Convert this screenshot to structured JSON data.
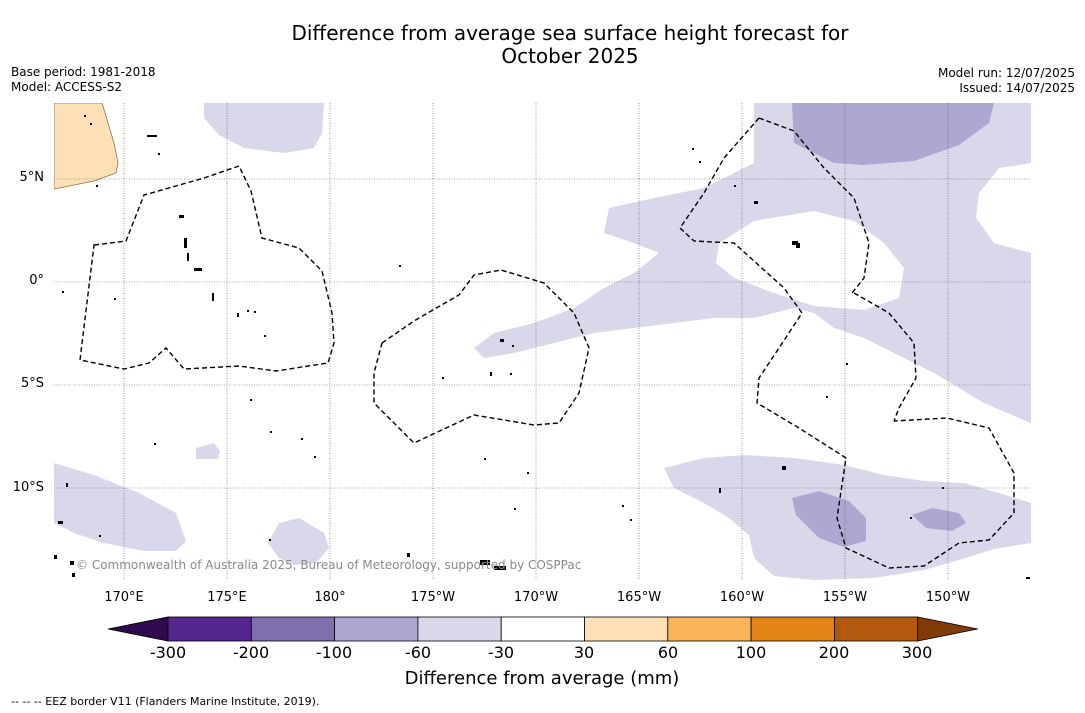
{
  "title_line1": "Difference from average sea surface height forecast for",
  "title_line2": "October 2025",
  "meta_left": [
    "Base period: 1981-2018",
    "Model: ACCESS-S2"
  ],
  "meta_right": [
    "Model run: 12/07/2025",
    "Issued: 14/07/2025"
  ],
  "lat_labels": [
    "5°N",
    "0°",
    "5°S",
    "10°S"
  ],
  "lon_labels": [
    "170°E",
    "175°E",
    "180°",
    "175°W",
    "170°W",
    "165°W",
    "160°W",
    "155°W",
    "150°W"
  ],
  "copyright": "© Commonwealth of Australia 2025, Bureau of Meteorology, supported by COSPPac",
  "colorbar": {
    "ticks": [
      "-300",
      "-200",
      "-100",
      "-60",
      "-30",
      "30",
      "60",
      "100",
      "200",
      "300"
    ],
    "colors": [
      "#2e0a4f",
      "#54278f",
      "#7e6fae",
      "#ada8d2",
      "#d8d8ea",
      "#ffffff",
      "#fde0b5",
      "#fab55a",
      "#e38417",
      "#b2590d",
      "#7f3b08"
    ],
    "label": "Difference from average (mm)"
  },
  "footnote": "-- -- -- EEZ border V11 (Flanders Marine Institute, 2019).",
  "map_colors": {
    "light_purple": "#d8d8ea",
    "medium_purple": "#ada8d2",
    "land_orange": "#fde0b5"
  }
}
